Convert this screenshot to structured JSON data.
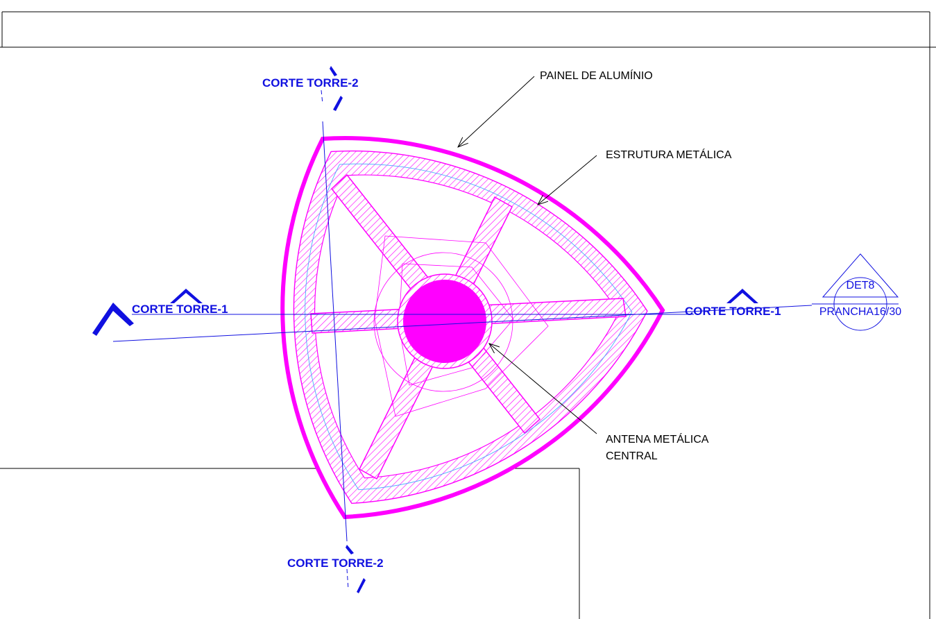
{
  "labels": {
    "painel": "PAINEL DE ALUMÍNIO",
    "estrutura": "ESTRUTURA METÁLICA",
    "antena": [
      "ANTENA METÁLICA",
      "CENTRAL"
    ]
  },
  "section_marks": {
    "top": "CORTE TORRE-2",
    "bottom": "CORTE TORRE-2",
    "left": "CORTE TORRE-1",
    "right": "CORTE TORRE-1"
  },
  "detail_tag": {
    "id": "DET8",
    "sheet": "PRANCHA16/30"
  }
}
